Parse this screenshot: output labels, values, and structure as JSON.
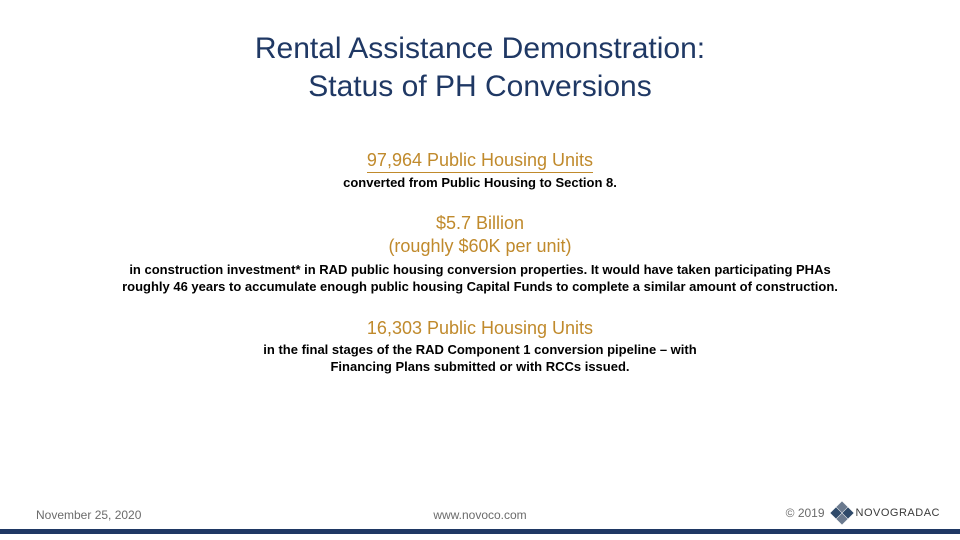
{
  "colors": {
    "title": "#1f3864",
    "accent": "#c08a2c",
    "body": "#000000",
    "muted": "#6b6b6b",
    "rule": "#1f3864",
    "bg": "#ffffff",
    "logoDark": "#2f4a6a",
    "logoLight": "#6b7a8f"
  },
  "typography": {
    "title_fontsize": 30,
    "stat_heading_fontsize": 18,
    "body_fontsize": 13,
    "footer_fontsize": 12,
    "logo_fontsize": 11
  },
  "title": {
    "line1": "Rental Assistance Demonstration:",
    "line2": "Status of PH Conversions"
  },
  "blocks": [
    {
      "heading": "97,964 Public Housing Units",
      "underline": true,
      "sub": "converted from Public Housing to Section 8."
    },
    {
      "heading_line1": "$5.7 Billion",
      "heading_line2": "(roughly $60K per unit)",
      "desc": "in construction investment* in RAD public housing conversion properties. It would have taken participating PHAs roughly 46 years to accumulate enough public housing Capital Funds to complete a similar amount of construction."
    },
    {
      "heading": "16,303 Public Housing Units",
      "desc": "in the final stages of the RAD Component 1 conversion pipeline – with Financing Plans submitted or with RCCs issued."
    }
  ],
  "footer": {
    "date": "November 25, 2020",
    "url": "www.novoco.com",
    "copyright": "© 2019",
    "logo_text": "NOVOGRADAC"
  }
}
